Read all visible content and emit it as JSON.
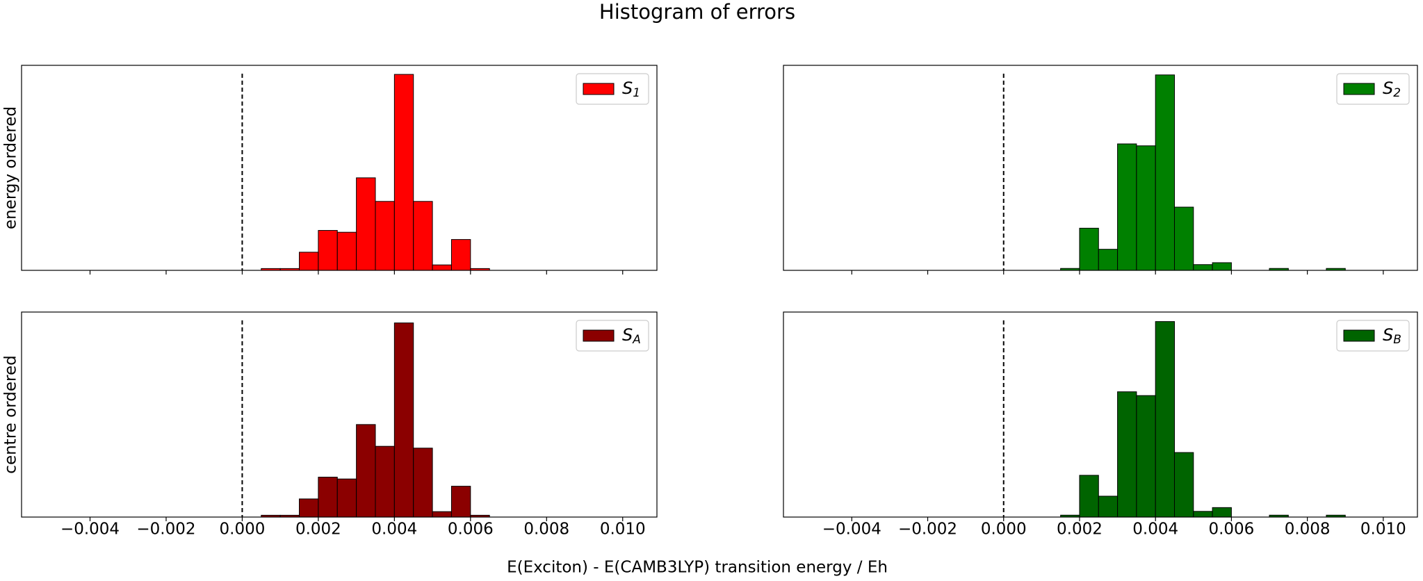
{
  "title": "Histogram of errors",
  "xlabel": "E(Exciton) - E(CAMB3LYP) transition energy / Eh",
  "chart_data": [
    {
      "type": "histogram",
      "ylabel": "energy ordered",
      "series": [
        {
          "name": "S",
          "name_sub": "1",
          "color": "#ff0000"
        }
      ],
      "bins": [
        0.0005,
        0.001,
        0.0015,
        0.002,
        0.0025,
        0.003,
        0.0035,
        0.004,
        0.0045,
        0.005,
        0.0055,
        0.006,
        0.0065
      ],
      "values": [
        1,
        1,
        10,
        22,
        21,
        51,
        38,
        108,
        38,
        3,
        17,
        1
      ],
      "xlim": [
        -0.0058,
        0.0109
      ],
      "ylim": [
        0,
        113
      ],
      "xticks": [
        -0.004,
        -0.002,
        0,
        0.002,
        0.004,
        0.006,
        0.008,
        0.01
      ],
      "vline": 0,
      "legend": "upper right"
    },
    {
      "type": "histogram",
      "series": [
        {
          "name": "S",
          "name_sub": "2",
          "color": "#008000"
        }
      ],
      "bins": [
        0.0015,
        0.002,
        0.0025,
        0.003,
        0.0035,
        0.004,
        0.0045,
        0.005,
        0.0055,
        0.006,
        0.0065,
        0.007,
        0.0075,
        0.008,
        0.0085,
        0.009
      ],
      "values": [
        1,
        22,
        11,
        66,
        65,
        102,
        33,
        3,
        4,
        0,
        0,
        1,
        0,
        0,
        1
      ],
      "xlim": [
        -0.0058,
        0.0109
      ],
      "ylim": [
        0,
        107
      ],
      "xticks": [
        -0.004,
        -0.002,
        0,
        0.002,
        0.004,
        0.006,
        0.008,
        0.01
      ],
      "vline": 0,
      "legend": "upper right"
    },
    {
      "type": "histogram",
      "ylabel": "centre ordered",
      "series": [
        {
          "name": "S",
          "name_sub": "A",
          "color": "#8b0000"
        }
      ],
      "bins": [
        0.0005,
        0.001,
        0.0015,
        0.002,
        0.0025,
        0.003,
        0.0035,
        0.004,
        0.0045,
        0.005,
        0.0055,
        0.006,
        0.0065
      ],
      "values": [
        1,
        1,
        10,
        22,
        21,
        51,
        39,
        107,
        38,
        3,
        17,
        1
      ],
      "xlim": [
        -0.0058,
        0.0109
      ],
      "ylim": [
        0,
        113
      ],
      "xticks": [
        {
          "value": -0.004,
          "label": "−0.004"
        },
        {
          "value": -0.002,
          "label": "−0.002"
        },
        {
          "value": 0,
          "label": "0.000"
        },
        0.002,
        0.004,
        0.006,
        0.008,
        {
          "value": 0.01,
          "label": "0.010"
        }
      ],
      "vline": 0,
      "legend": "upper right"
    },
    {
      "type": "histogram",
      "series": [
        {
          "name": "S",
          "name_sub": "B",
          "color": "#006400"
        }
      ],
      "bins": [
        0.0015,
        0.002,
        0.0025,
        0.003,
        0.0035,
        0.004,
        0.0045,
        0.005,
        0.0055,
        0.006,
        0.0065,
        0.007,
        0.0075,
        0.008,
        0.0085,
        0.009
      ],
      "values": [
        1,
        22,
        11,
        66,
        64,
        103,
        34,
        3,
        5,
        0,
        0,
        1,
        0,
        0,
        1
      ],
      "xlim": [
        -0.0058,
        0.0109
      ],
      "ylim": [
        0,
        108
      ],
      "xticks": [
        {
          "value": -0.004,
          "label": "−0.004"
        },
        {
          "value": -0.002,
          "label": "−0.002"
        },
        {
          "value": 0,
          "label": "0.000"
        },
        0.002,
        0.004,
        0.006,
        0.008,
        {
          "value": 0.01,
          "label": "0.010"
        }
      ],
      "vline": 0,
      "legend": "upper right"
    }
  ]
}
